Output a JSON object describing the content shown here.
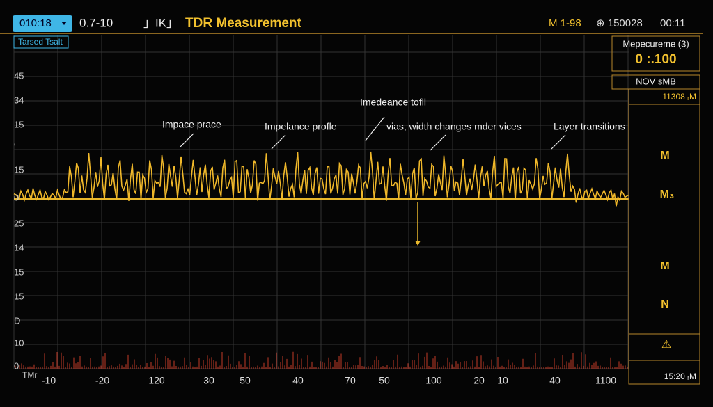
{
  "toolbar": {
    "time_select": "010:18",
    "range": "0.7-10",
    "icons": "」IK」",
    "title": "TDR Measurement",
    "marker": "M 1-98",
    "counter": "⊕ 150028",
    "clock": "00:11"
  },
  "plot": {
    "tag": "Tarsed Tsalt",
    "y_labels": [
      "45",
      "34",
      "15",
      "'",
      "15",
      "0",
      "25",
      "14",
      "15",
      "15",
      "D",
      "10",
      "0"
    ],
    "x_unit": "TMr",
    "x_labels": [
      "-10",
      "-20",
      "120",
      "30",
      "50",
      "40",
      "70",
      "50",
      "100",
      "20",
      "10",
      "40",
      "1100"
    ],
    "annotations": [
      "Impace prace",
      "Impelance profle",
      "Imedeance tofll",
      "vias, width changes mder vices",
      "Layer transitions"
    ]
  },
  "panel": {
    "heading": "Mepecureme (3)",
    "reading": "0 :.100",
    "mode": "NOV sMB",
    "stamp": "11308 ᵣM",
    "markers": [
      "M",
      "M₃",
      "M",
      "N"
    ],
    "warning": "⚠",
    "footer": "15:20 ᵣM"
  }
}
